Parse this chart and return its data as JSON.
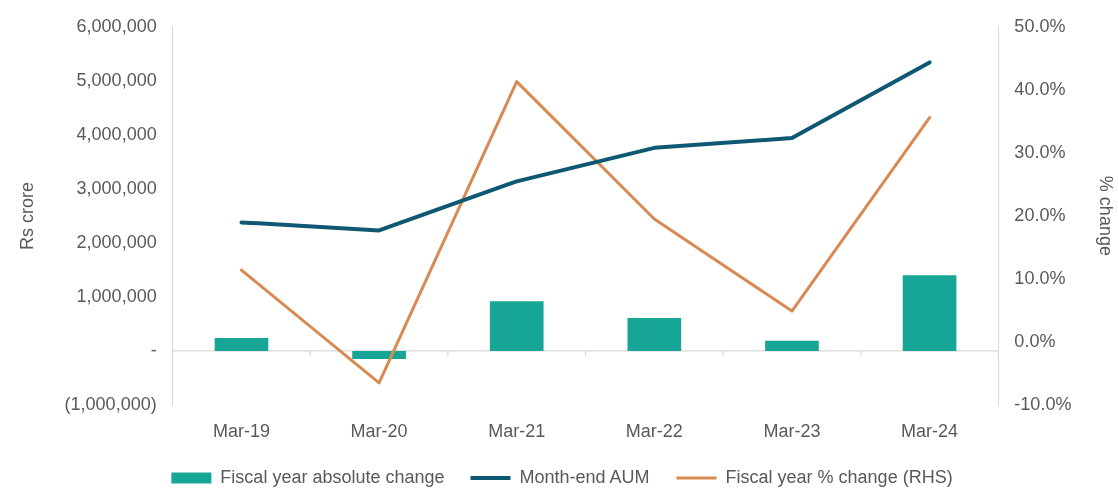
{
  "chart_data": {
    "type": "bar",
    "categories": [
      "Mar-19",
      "Mar-20",
      "Mar-21",
      "Mar-22",
      "Mar-23",
      "Mar-24"
    ],
    "ylabel": "Rs crore",
    "y2label": "% change",
    "series": [
      {
        "name": "Fiscal year absolute change",
        "color": "#17a596",
        "values": [
          240000,
          -150000,
          920000,
          610000,
          190000,
          1400000
        ]
      },
      {
        "name": "Month-end AUM",
        "type": "line",
        "color": "#0e5874",
        "values": [
          2380000,
          2230000,
          3140000,
          3760000,
          3940000,
          5340000
        ]
      },
      {
        "name": "Fiscal year % change (RHS)",
        "type": "line",
        "axis": "y2",
        "color": "#d88a53",
        "values": [
          11.4,
          -6.5,
          41.3,
          19.5,
          4.9,
          35.6
        ]
      }
    ],
    "ylim": [
      -1000000,
      6000000
    ],
    "yticks": [
      {
        "value": -1000000,
        "label": "(1,000,000)"
      },
      {
        "value": 0,
        "label": "-"
      },
      {
        "value": 1000000,
        "label": "1,000,000"
      },
      {
        "value": 2000000,
        "label": "2,000,000"
      },
      {
        "value": 3000000,
        "label": "3,000,000"
      },
      {
        "value": 4000000,
        "label": "4,000,000"
      },
      {
        "value": 5000000,
        "label": "5,000,000"
      },
      {
        "value": 6000000,
        "label": "6,000,000"
      }
    ],
    "y2lim": [
      -10,
      50
    ],
    "y2ticks": [
      {
        "value": -10,
        "label": "-10.0%"
      },
      {
        "value": 0,
        "label": "0.0%"
      },
      {
        "value": 10,
        "label": "10.0%"
      },
      {
        "value": 20,
        "label": "20.0%"
      },
      {
        "value": 30,
        "label": "30.0%"
      },
      {
        "value": 40,
        "label": "40.0%"
      },
      {
        "value": 50,
        "label": "50.0%"
      }
    ],
    "legend": "bottom"
  }
}
